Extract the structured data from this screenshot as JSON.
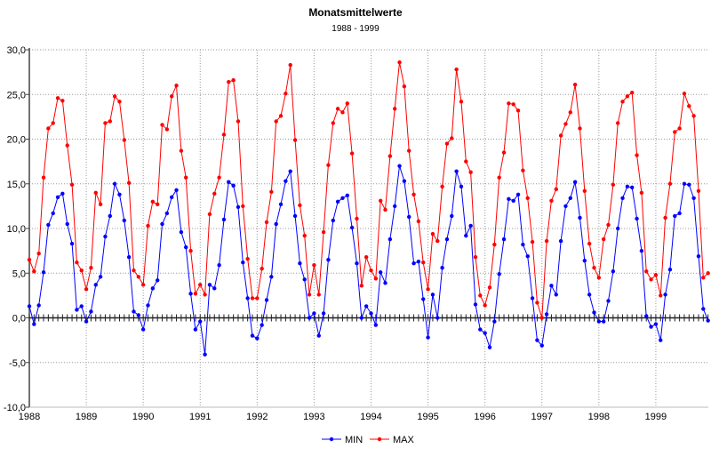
{
  "chart_data": {
    "type": "line",
    "title": "Monatsmittelwerte",
    "subtitle": "1988 - 1999",
    "xlabel": "",
    "ylabel": "",
    "ylim": [
      -10,
      30
    ],
    "xlim": [
      1988,
      2000
    ],
    "grid": true,
    "legend_position": "bottom-center",
    "y_ticks": [
      "-10,0",
      "-5,0",
      "0,0",
      "5,0",
      "10,0",
      "15,0",
      "20,0",
      "25,0",
      "30,0"
    ],
    "y_tick_values": [
      -10,
      -5,
      0,
      5,
      10,
      15,
      20,
      25,
      30
    ],
    "x_ticks": [
      "1988",
      "1989",
      "1990",
      "1991",
      "1992",
      "1993",
      "1994",
      "1995",
      "1996",
      "1997",
      "1998",
      "1999"
    ],
    "x_start": 1988,
    "points_per_year": 12,
    "series": [
      {
        "name": "MIN",
        "color": "#0000ff",
        "values": [
          1.3,
          -0.7,
          1.4,
          5.1,
          10.4,
          11.7,
          13.5,
          13.9,
          10.5,
          8.3,
          0.9,
          1.3,
          -0.4,
          0.7,
          3.7,
          4.6,
          9.1,
          11.4,
          15.0,
          13.8,
          10.9,
          6.8,
          0.7,
          0.3,
          -1.3,
          1.4,
          3.3,
          4.2,
          10.5,
          11.7,
          13.5,
          14.3,
          9.6,
          7.9,
          2.7,
          -1.3,
          -0.4,
          -4.1,
          3.7,
          3.3,
          5.9,
          11.0,
          15.2,
          14.8,
          12.4,
          6.2,
          2.2,
          -2.0,
          -2.3,
          -0.8,
          2.0,
          4.6,
          10.5,
          12.7,
          15.3,
          16.4,
          11.4,
          6.1,
          4.3,
          0.0,
          0.5,
          -2.0,
          0.5,
          6.5,
          10.9,
          13.0,
          13.4,
          13.7,
          10.1,
          6.1,
          0.0,
          1.3,
          0.5,
          -0.8,
          5.1,
          3.9,
          8.8,
          12.5,
          17.0,
          15.3,
          11.3,
          6.1,
          6.3,
          2.1,
          -2.2,
          2.6,
          0.0,
          5.6,
          8.8,
          11.4,
          16.4,
          14.7,
          9.2,
          10.3,
          1.5,
          -1.3,
          -1.7,
          -3.3,
          -0.4,
          4.9,
          8.8,
          13.3,
          13.1,
          13.8,
          8.2,
          6.9,
          2.2,
          -2.5,
          -3.1,
          0.4,
          3.6,
          2.6,
          8.6,
          12.5,
          13.4,
          15.2,
          11.2,
          6.4,
          2.6,
          0.6,
          -0.4,
          -0.4,
          1.9,
          5.2,
          10.0,
          13.4,
          14.7,
          14.6,
          11.1,
          7.5,
          0.2,
          -1.0,
          -0.7,
          -2.5,
          2.6,
          5.4,
          11.4,
          11.7,
          15.0,
          14.9,
          13.4,
          6.9,
          1.0,
          -0.3
        ]
      },
      {
        "name": "MAX",
        "color": "#ff0000",
        "values": [
          6.5,
          5.2,
          7.2,
          15.7,
          21.2,
          21.8,
          24.6,
          24.3,
          19.3,
          14.9,
          6.2,
          5.3,
          3.2,
          5.6,
          14.0,
          12.7,
          21.8,
          22.0,
          24.8,
          24.2,
          19.9,
          15.1,
          5.3,
          4.6,
          3.7,
          10.3,
          13.0,
          12.7,
          21.6,
          21.1,
          24.8,
          26.0,
          18.7,
          15.7,
          7.5,
          2.7,
          3.7,
          2.6,
          11.6,
          13.9,
          15.7,
          20.5,
          26.4,
          26.6,
          22.0,
          12.5,
          6.6,
          2.2,
          2.2,
          5.5,
          10.7,
          14.1,
          22.0,
          22.6,
          25.1,
          28.3,
          19.9,
          12.6,
          9.2,
          2.6,
          5.9,
          2.6,
          9.6,
          17.1,
          21.8,
          23.4,
          23.0,
          24.0,
          18.4,
          11.1,
          3.6,
          6.8,
          5.3,
          4.4,
          13.1,
          12.1,
          18.1,
          23.4,
          28.6,
          25.9,
          18.7,
          13.8,
          10.8,
          6.2,
          3.2,
          9.4,
          8.6,
          14.7,
          19.5,
          20.1,
          27.8,
          24.2,
          17.5,
          16.3,
          6.8,
          2.5,
          1.4,
          3.4,
          8.2,
          15.7,
          18.5,
          24.0,
          23.9,
          23.2,
          16.5,
          13.4,
          8.5,
          1.7,
          0.0,
          8.6,
          13.1,
          14.4,
          20.4,
          21.7,
          23.0,
          26.1,
          21.2,
          14.2,
          8.3,
          5.6,
          4.5,
          8.8,
          10.4,
          14.9,
          21.8,
          24.2,
          24.8,
          25.2,
          18.2,
          14.0,
          5.2,
          4.3,
          4.8,
          2.5,
          11.2,
          15.0,
          20.8,
          21.2,
          25.1,
          23.7,
          22.6,
          14.2,
          4.5,
          5.0
        ]
      }
    ]
  }
}
